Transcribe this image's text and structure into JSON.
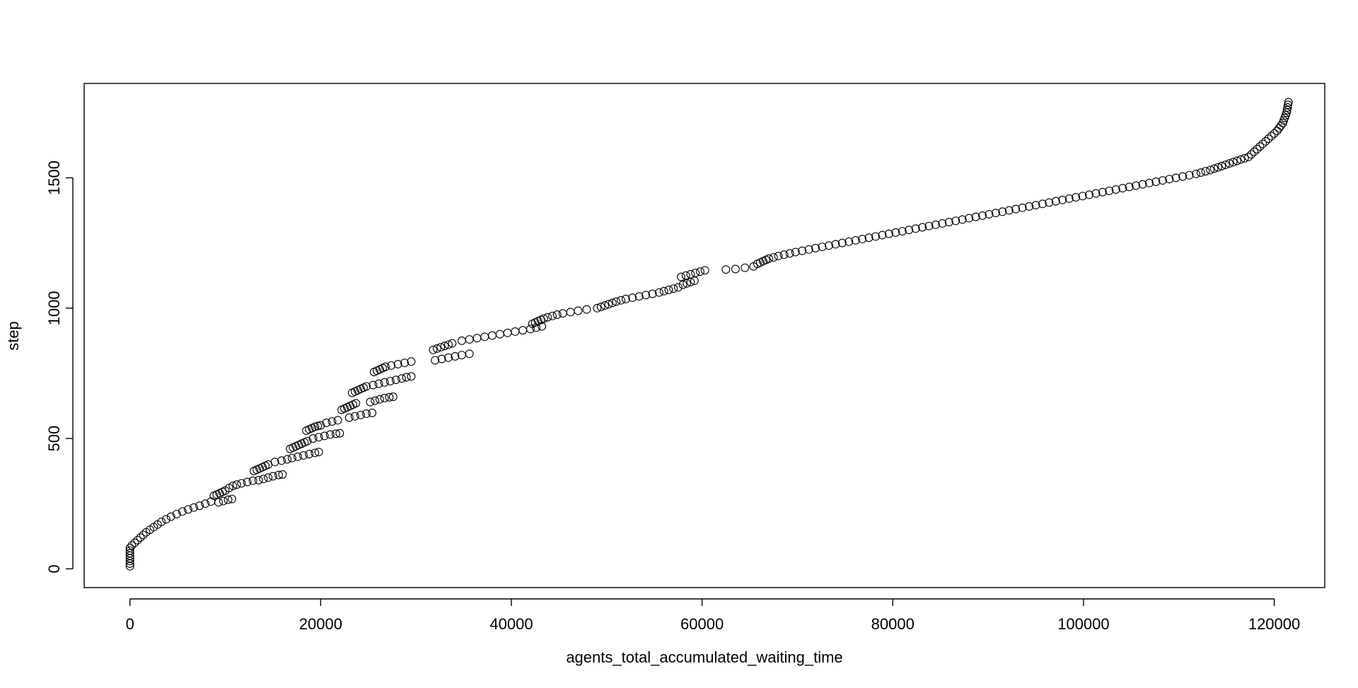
{
  "chart_data": {
    "type": "scatter",
    "xlabel": "agents_total_accumulated_waiting_time",
    "ylabel": "step",
    "xlim": [
      -4800,
      125300
    ],
    "ylim": [
      -72,
      1862
    ],
    "x_ticks": [
      0,
      20000,
      40000,
      60000,
      80000,
      100000,
      120000
    ],
    "y_ticks": [
      0,
      500,
      1000,
      1500
    ],
    "marker": "open-circle",
    "colors": {
      "marker_stroke": "#000000",
      "axis": "#000000",
      "background": "#ffffff"
    },
    "points": [
      [
        0,
        10
      ],
      [
        0,
        20
      ],
      [
        0,
        30
      ],
      [
        0,
        40
      ],
      [
        0,
        50
      ],
      [
        0,
        60
      ],
      [
        0,
        70
      ],
      [
        0,
        80
      ],
      [
        200,
        90
      ],
      [
        500,
        100
      ],
      [
        800,
        110
      ],
      [
        1100,
        120
      ],
      [
        1400,
        130
      ],
      [
        1700,
        140
      ],
      [
        2100,
        150
      ],
      [
        2500,
        160
      ],
      [
        2900,
        170
      ],
      [
        3300,
        180
      ],
      [
        3800,
        190
      ],
      [
        4300,
        200
      ],
      [
        4900,
        210
      ],
      [
        5500,
        220
      ],
      [
        6100,
        228
      ],
      [
        6700,
        235
      ],
      [
        7300,
        242
      ],
      [
        7900,
        250
      ],
      [
        8500,
        258
      ],
      [
        8800,
        280
      ],
      [
        9100,
        285
      ],
      [
        9400,
        290
      ],
      [
        9700,
        295
      ],
      [
        10000,
        300
      ],
      [
        10400,
        310
      ],
      [
        10800,
        318
      ],
      [
        11200,
        323
      ],
      [
        11700,
        328
      ],
      [
        12300,
        333
      ],
      [
        12900,
        338
      ],
      [
        9300,
        255
      ],
      [
        9800,
        260
      ],
      [
        10300,
        265
      ],
      [
        10700,
        268
      ],
      [
        13000,
        375
      ],
      [
        13300,
        380
      ],
      [
        13600,
        385
      ],
      [
        13900,
        390
      ],
      [
        14200,
        395
      ],
      [
        14500,
        400
      ],
      [
        13500,
        340
      ],
      [
        14000,
        345
      ],
      [
        14500,
        350
      ],
      [
        15000,
        355
      ],
      [
        15600,
        360
      ],
      [
        16000,
        362
      ],
      [
        15200,
        410
      ],
      [
        15900,
        415
      ],
      [
        16500,
        420
      ],
      [
        17000,
        425
      ],
      [
        16800,
        460
      ],
      [
        17100,
        465
      ],
      [
        17400,
        470
      ],
      [
        17700,
        475
      ],
      [
        18000,
        480
      ],
      [
        18300,
        485
      ],
      [
        18600,
        490
      ],
      [
        17600,
        430
      ],
      [
        18200,
        435
      ],
      [
        18800,
        440
      ],
      [
        19400,
        445
      ],
      [
        19800,
        448
      ],
      [
        18500,
        530
      ],
      [
        18800,
        535
      ],
      [
        19100,
        540
      ],
      [
        19400,
        545
      ],
      [
        19700,
        548
      ],
      [
        20000,
        550
      ],
      [
        19200,
        500
      ],
      [
        19800,
        505
      ],
      [
        20400,
        510
      ],
      [
        21000,
        515
      ],
      [
        21600,
        518
      ],
      [
        22000,
        520
      ],
      [
        20600,
        560
      ],
      [
        21200,
        565
      ],
      [
        21800,
        570
      ],
      [
        22200,
        610
      ],
      [
        22500,
        615
      ],
      [
        22800,
        620
      ],
      [
        23100,
        625
      ],
      [
        23400,
        630
      ],
      [
        23700,
        635
      ],
      [
        23000,
        580
      ],
      [
        23600,
        585
      ],
      [
        24200,
        590
      ],
      [
        24800,
        595
      ],
      [
        25400,
        598
      ],
      [
        23300,
        675
      ],
      [
        23600,
        680
      ],
      [
        23900,
        685
      ],
      [
        24200,
        690
      ],
      [
        24500,
        695
      ],
      [
        24800,
        700
      ],
      [
        25200,
        640
      ],
      [
        25700,
        645
      ],
      [
        26200,
        650
      ],
      [
        26700,
        655
      ],
      [
        27200,
        658
      ],
      [
        27600,
        660
      ],
      [
        25600,
        755
      ],
      [
        25900,
        760
      ],
      [
        26200,
        765
      ],
      [
        26500,
        770
      ],
      [
        26800,
        775
      ],
      [
        25500,
        705
      ],
      [
        26100,
        710
      ],
      [
        26700,
        715
      ],
      [
        27300,
        720
      ],
      [
        27900,
        725
      ],
      [
        28500,
        730
      ],
      [
        29000,
        735
      ],
      [
        29500,
        738
      ],
      [
        27400,
        780
      ],
      [
        28100,
        785
      ],
      [
        28800,
        790
      ],
      [
        29500,
        795
      ],
      [
        31800,
        840
      ],
      [
        32200,
        845
      ],
      [
        32600,
        850
      ],
      [
        33000,
        855
      ],
      [
        33400,
        860
      ],
      [
        33800,
        865
      ],
      [
        32000,
        800
      ],
      [
        32700,
        805
      ],
      [
        33400,
        810
      ],
      [
        34100,
        815
      ],
      [
        34800,
        820
      ],
      [
        35600,
        825
      ],
      [
        34800,
        875
      ],
      [
        35600,
        880
      ],
      [
        36400,
        885
      ],
      [
        37200,
        890
      ],
      [
        38000,
        895
      ],
      [
        38800,
        900
      ],
      [
        39600,
        905
      ],
      [
        40400,
        910
      ],
      [
        41200,
        915
      ],
      [
        42200,
        940
      ],
      [
        42500,
        945
      ],
      [
        42800,
        950
      ],
      [
        43100,
        955
      ],
      [
        43400,
        960
      ],
      [
        43800,
        965
      ],
      [
        44300,
        970
      ],
      [
        44800,
        975
      ],
      [
        45400,
        980
      ],
      [
        42000,
        920
      ],
      [
        42600,
        925
      ],
      [
        43200,
        930
      ],
      [
        46200,
        985
      ],
      [
        47000,
        990
      ],
      [
        47900,
        995
      ],
      [
        49000,
        1000
      ],
      [
        49400,
        1005
      ],
      [
        49800,
        1010
      ],
      [
        50200,
        1015
      ],
      [
        50600,
        1020
      ],
      [
        51000,
        1025
      ],
      [
        51500,
        1030
      ],
      [
        52000,
        1035
      ],
      [
        52700,
        1040
      ],
      [
        53400,
        1045
      ],
      [
        54100,
        1050
      ],
      [
        54800,
        1055
      ],
      [
        55500,
        1060
      ],
      [
        56000,
        1065
      ],
      [
        56500,
        1070
      ],
      [
        57000,
        1075
      ],
      [
        57500,
        1080
      ],
      [
        58000,
        1090
      ],
      [
        58400,
        1095
      ],
      [
        58800,
        1100
      ],
      [
        59200,
        1105
      ],
      [
        57800,
        1120
      ],
      [
        58300,
        1125
      ],
      [
        58800,
        1130
      ],
      [
        59300,
        1135
      ],
      [
        59800,
        1140
      ],
      [
        60300,
        1145
      ],
      [
        62500,
        1148
      ],
      [
        63500,
        1150
      ],
      [
        64500,
        1155
      ],
      [
        65400,
        1160
      ],
      [
        65800,
        1170
      ],
      [
        66100,
        1175
      ],
      [
        66400,
        1180
      ],
      [
        66700,
        1185
      ],
      [
        67000,
        1190
      ],
      [
        67500,
        1195
      ],
      [
        68000,
        1200
      ],
      [
        68600,
        1205
      ],
      [
        69200,
        1210
      ],
      [
        69800,
        1215
      ],
      [
        70500,
        1220
      ],
      [
        71200,
        1225
      ],
      [
        71900,
        1230
      ],
      [
        72600,
        1235
      ],
      [
        73300,
        1240
      ],
      [
        74000,
        1245
      ],
      [
        74700,
        1250
      ],
      [
        75400,
        1255
      ],
      [
        76100,
        1260
      ],
      [
        76800,
        1265
      ],
      [
        77500,
        1270
      ],
      [
        78200,
        1275
      ],
      [
        78900,
        1280
      ],
      [
        79600,
        1285
      ],
      [
        80300,
        1290
      ],
      [
        81000,
        1295
      ],
      [
        81700,
        1300
      ],
      [
        82400,
        1305
      ],
      [
        83100,
        1310
      ],
      [
        83800,
        1315
      ],
      [
        84500,
        1320
      ],
      [
        85200,
        1325
      ],
      [
        85900,
        1330
      ],
      [
        86600,
        1335
      ],
      [
        87300,
        1340
      ],
      [
        88000,
        1345
      ],
      [
        88700,
        1350
      ],
      [
        89400,
        1355
      ],
      [
        90100,
        1360
      ],
      [
        90800,
        1365
      ],
      [
        91500,
        1370
      ],
      [
        92200,
        1375
      ],
      [
        92900,
        1380
      ],
      [
        93600,
        1385
      ],
      [
        94300,
        1390
      ],
      [
        95000,
        1395
      ],
      [
        95700,
        1400
      ],
      [
        96400,
        1405
      ],
      [
        97100,
        1410
      ],
      [
        97800,
        1415
      ],
      [
        98500,
        1420
      ],
      [
        99200,
        1425
      ],
      [
        99900,
        1430
      ],
      [
        100600,
        1435
      ],
      [
        101300,
        1440
      ],
      [
        102000,
        1445
      ],
      [
        102700,
        1450
      ],
      [
        103400,
        1455
      ],
      [
        104100,
        1460
      ],
      [
        104800,
        1465
      ],
      [
        105500,
        1470
      ],
      [
        106200,
        1475
      ],
      [
        106900,
        1480
      ],
      [
        107600,
        1485
      ],
      [
        108300,
        1490
      ],
      [
        109000,
        1495
      ],
      [
        109700,
        1500
      ],
      [
        110400,
        1505
      ],
      [
        111100,
        1510
      ],
      [
        111800,
        1515
      ],
      [
        112300,
        1520
      ],
      [
        112800,
        1525
      ],
      [
        113300,
        1530
      ],
      [
        113700,
        1535
      ],
      [
        114100,
        1540
      ],
      [
        114500,
        1545
      ],
      [
        114900,
        1550
      ],
      [
        115300,
        1555
      ],
      [
        115700,
        1560
      ],
      [
        116100,
        1565
      ],
      [
        116500,
        1570
      ],
      [
        116900,
        1575
      ],
      [
        117300,
        1580
      ],
      [
        117600,
        1590
      ],
      [
        117900,
        1600
      ],
      [
        118200,
        1610
      ],
      [
        118500,
        1620
      ],
      [
        118800,
        1630
      ],
      [
        119100,
        1640
      ],
      [
        119400,
        1650
      ],
      [
        119700,
        1660
      ],
      [
        120000,
        1670
      ],
      [
        120300,
        1680
      ],
      [
        120500,
        1690
      ],
      [
        120700,
        1700
      ],
      [
        120900,
        1710
      ],
      [
        121000,
        1720
      ],
      [
        121100,
        1730
      ],
      [
        121200,
        1740
      ],
      [
        121300,
        1750
      ],
      [
        121350,
        1760
      ],
      [
        121400,
        1770
      ],
      [
        121450,
        1780
      ],
      [
        121500,
        1790
      ]
    ]
  }
}
